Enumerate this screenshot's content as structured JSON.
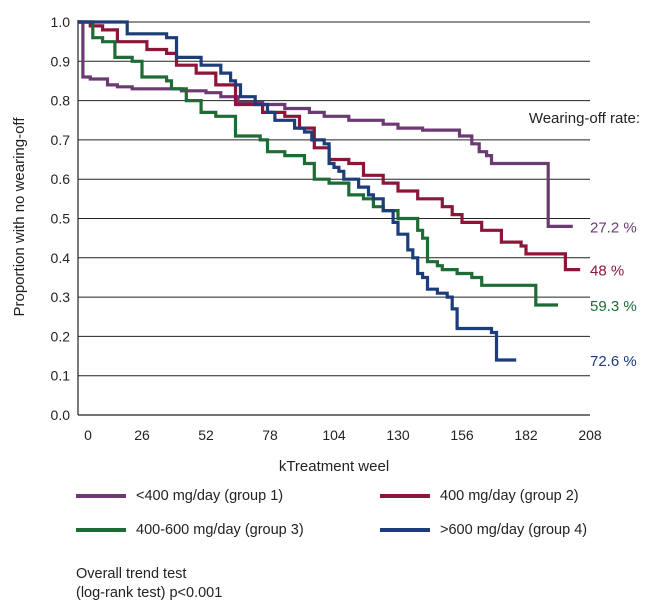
{
  "chart_data": {
    "type": "line",
    "step": true,
    "title": "",
    "xlabel": "kTreatment weel",
    "ylabel": "Proportion with no wearing-off",
    "xlim": [
      0,
      208
    ],
    "ylim": [
      0,
      1.0
    ],
    "xticks": [
      0,
      26,
      52,
      78,
      104,
      130,
      156,
      182,
      208
    ],
    "yticks": [
      "0.0",
      "0.1",
      "0.2",
      "0.3",
      "0.4",
      "0.5",
      "0.6",
      "0.7",
      "0.8",
      "0.9",
      "1.0"
    ],
    "grid": "horizontal",
    "annotation_title": "Wearing-off rate:",
    "series": [
      {
        "name": "<400 mg/day (group 1)",
        "color": "#6b3a73",
        "end_label": "27.2 %",
        "points": [
          [
            0,
            1.0
          ],
          [
            2,
            0.86
          ],
          [
            5,
            0.855
          ],
          [
            12,
            0.84
          ],
          [
            16,
            0.835
          ],
          [
            22,
            0.83
          ],
          [
            42,
            0.825
          ],
          [
            52,
            0.82
          ],
          [
            58,
            0.81
          ],
          [
            65,
            0.795
          ],
          [
            75,
            0.79
          ],
          [
            84,
            0.78
          ],
          [
            94,
            0.77
          ],
          [
            100,
            0.76
          ],
          [
            110,
            0.75
          ],
          [
            124,
            0.74
          ],
          [
            130,
            0.73
          ],
          [
            140,
            0.725
          ],
          [
            155,
            0.71
          ],
          [
            160,
            0.69
          ],
          [
            163,
            0.67
          ],
          [
            166,
            0.66
          ],
          [
            168,
            0.64
          ],
          [
            188,
            0.64
          ],
          [
            191,
            0.48
          ],
          [
            201,
            0.48
          ]
        ]
      },
      {
        "name": "400 mg/day (group 2)",
        "color": "#8c1539",
        "end_label": "48 %",
        "points": [
          [
            0,
            1.0
          ],
          [
            5,
            0.99
          ],
          [
            10,
            0.98
          ],
          [
            16,
            0.95
          ],
          [
            28,
            0.93
          ],
          [
            36,
            0.92
          ],
          [
            40,
            0.89
          ],
          [
            48,
            0.87
          ],
          [
            56,
            0.84
          ],
          [
            64,
            0.79
          ],
          [
            75,
            0.77
          ],
          [
            84,
            0.76
          ],
          [
            90,
            0.73
          ],
          [
            96,
            0.68
          ],
          [
            102,
            0.65
          ],
          [
            110,
            0.64
          ],
          [
            116,
            0.61
          ],
          [
            124,
            0.59
          ],
          [
            130,
            0.57
          ],
          [
            138,
            0.55
          ],
          [
            148,
            0.53
          ],
          [
            152,
            0.51
          ],
          [
            156,
            0.49
          ],
          [
            164,
            0.47
          ],
          [
            172,
            0.44
          ],
          [
            180,
            0.43
          ],
          [
            182,
            0.41
          ],
          [
            196,
            0.41
          ],
          [
            198,
            0.37
          ],
          [
            204,
            0.37
          ]
        ]
      },
      {
        "name": "400-600 mg/day (group 3)",
        "color": "#1e6b35",
        "end_label": "59.3 %",
        "points": [
          [
            0,
            1.0
          ],
          [
            6,
            0.96
          ],
          [
            10,
            0.95
          ],
          [
            15,
            0.91
          ],
          [
            22,
            0.9
          ],
          [
            26,
            0.86
          ],
          [
            36,
            0.85
          ],
          [
            38,
            0.83
          ],
          [
            44,
            0.8
          ],
          [
            50,
            0.77
          ],
          [
            56,
            0.76
          ],
          [
            64,
            0.71
          ],
          [
            74,
            0.7
          ],
          [
            77,
            0.67
          ],
          [
            84,
            0.66
          ],
          [
            92,
            0.64
          ],
          [
            96,
            0.6
          ],
          [
            102,
            0.59
          ],
          [
            110,
            0.56
          ],
          [
            116,
            0.55
          ],
          [
            120,
            0.53
          ],
          [
            124,
            0.52
          ],
          [
            130,
            0.5
          ],
          [
            138,
            0.47
          ],
          [
            140,
            0.45
          ],
          [
            142,
            0.39
          ],
          [
            146,
            0.38
          ],
          [
            148,
            0.37
          ],
          [
            154,
            0.36
          ],
          [
            160,
            0.35
          ],
          [
            164,
            0.33
          ],
          [
            184,
            0.33
          ],
          [
            186,
            0.28
          ],
          [
            195,
            0.28
          ]
        ]
      },
      {
        "name": ">600 mg/day (group 4)",
        "color": "#1d3d7a",
        "end_label": "72.6 %",
        "points": [
          [
            0,
            1.0
          ],
          [
            2,
            1.0
          ],
          [
            18,
            1.0
          ],
          [
            20,
            0.97
          ],
          [
            36,
            0.96
          ],
          [
            40,
            0.91
          ],
          [
            50,
            0.89
          ],
          [
            58,
            0.87
          ],
          [
            62,
            0.85
          ],
          [
            64,
            0.84
          ],
          [
            66,
            0.81
          ],
          [
            72,
            0.79
          ],
          [
            77,
            0.77
          ],
          [
            80,
            0.75
          ],
          [
            88,
            0.73
          ],
          [
            92,
            0.72
          ],
          [
            95,
            0.7
          ],
          [
            100,
            0.69
          ],
          [
            102,
            0.64
          ],
          [
            104,
            0.63
          ],
          [
            106,
            0.62
          ],
          [
            108,
            0.6
          ],
          [
            114,
            0.58
          ],
          [
            118,
            0.56
          ],
          [
            120,
            0.55
          ],
          [
            124,
            0.52
          ],
          [
            128,
            0.49
          ],
          [
            130,
            0.46
          ],
          [
            134,
            0.42
          ],
          [
            136,
            0.4
          ],
          [
            138,
            0.36
          ],
          [
            140,
            0.35
          ],
          [
            142,
            0.32
          ],
          [
            146,
            0.31
          ],
          [
            150,
            0.3
          ],
          [
            152,
            0.27
          ],
          [
            154,
            0.22
          ],
          [
            156,
            0.22
          ],
          [
            168,
            0.21
          ],
          [
            170,
            0.14
          ],
          [
            178,
            0.14
          ]
        ]
      }
    ]
  },
  "footnote": {
    "line1": "Overall trend test",
    "line2": "(log-rank test) p<0.001"
  }
}
